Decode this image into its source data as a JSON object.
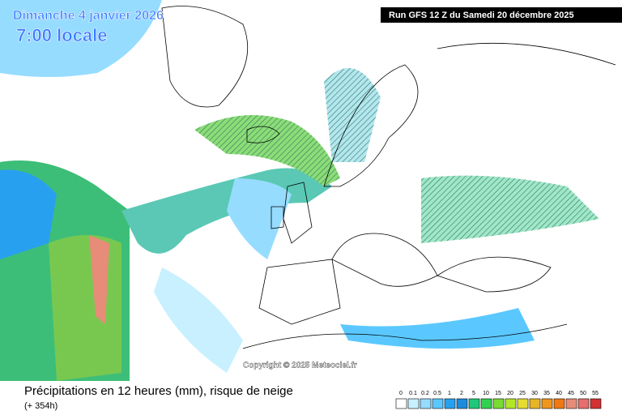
{
  "header": {
    "date": "Dimanche 4 janvier 2026",
    "time": "7:00 locale",
    "run": "Run GFS 12 Z du Samedi 20 décembre 2025"
  },
  "copyright": "Copyright © 2025 Meteociel.fr",
  "footer": {
    "title": "Précipitations en 12 heures (mm), risque de neige",
    "lead": "(+ 354h)"
  },
  "legend": {
    "levels": [
      0,
      0.1,
      0.2,
      0.5,
      1,
      2,
      5,
      10,
      15,
      20,
      25,
      30,
      35,
      40,
      45,
      50,
      55
    ],
    "colors": [
      "#ffffff",
      "#c8f0ff",
      "#96dcff",
      "#5ac8ff",
      "#28a0f0",
      "#1e8cdc",
      "#1ec878",
      "#32d250",
      "#78dc32",
      "#b4e628",
      "#e6dc32",
      "#e6b428",
      "#f0961e",
      "#f07814",
      "#e68c78",
      "#e66e6e",
      "#d23232"
    ]
  }
}
